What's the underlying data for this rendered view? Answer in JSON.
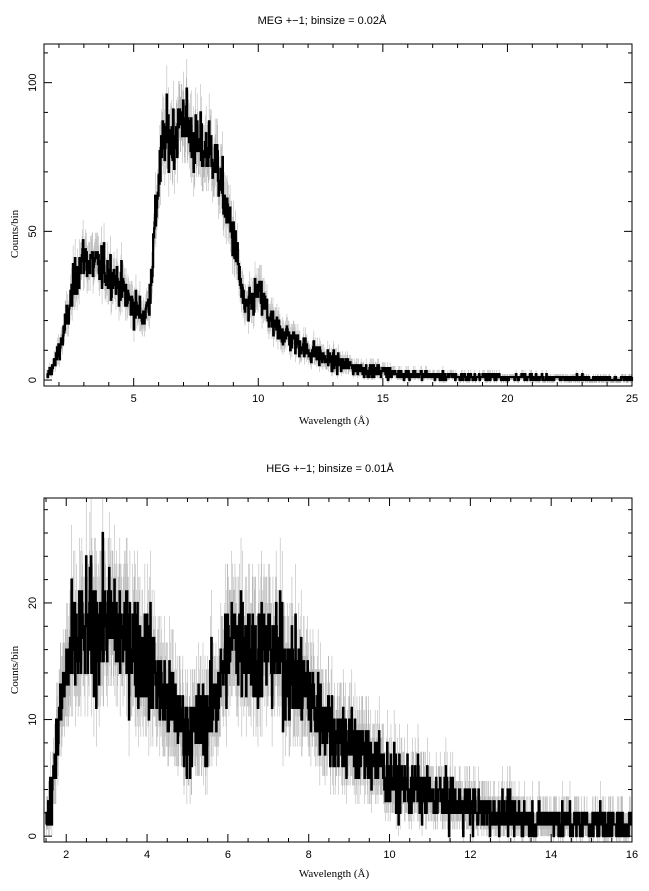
{
  "chart_data": [
    {
      "type": "line",
      "title": "MEG +−1; binsize = 0.02Å",
      "xlabel": "Wavelength (Å)",
      "ylabel": "Counts/bin",
      "xlim": [
        1.4,
        25
      ],
      "ylim": [
        -2,
        113
      ],
      "xticks": [
        5,
        10,
        15,
        20,
        25
      ],
      "yticks": [
        0,
        50,
        100
      ],
      "grid": false,
      "series": [
        {
          "x": [
            1.5,
            1.8,
            2.0,
            2.2,
            2.4,
            2.6,
            2.8,
            3.0,
            3.2,
            3.4,
            3.6,
            3.8,
            4.0,
            4.2,
            4.4,
            4.6,
            4.8,
            5.0,
            5.2,
            5.4,
            5.6,
            5.8,
            6.0,
            6.2,
            6.4,
            6.6,
            6.8,
            7.0,
            7.2,
            7.4,
            7.6,
            7.8,
            8.0,
            8.2,
            8.4,
            8.6,
            8.8,
            9.0,
            9.2,
            9.4,
            9.6,
            9.8,
            10.0,
            10.3,
            10.6,
            11.0,
            11.5,
            12.0,
            12.5,
            13.0,
            13.5,
            14.0,
            14.5,
            15.0,
            15.5,
            16.0,
            17.0,
            18.0,
            19.0,
            20.0,
            21.0,
            22.0,
            23.0,
            24.0,
            25.0
          ],
          "values": [
            1,
            5,
            10,
            16,
            24,
            32,
            38,
            41,
            40,
            39,
            38,
            37,
            36,
            35,
            32,
            30,
            27,
            25,
            23,
            22,
            25,
            45,
            68,
            80,
            82,
            82,
            85,
            90,
            84,
            80,
            78,
            77,
            78,
            76,
            70,
            62,
            55,
            48,
            38,
            26,
            23,
            27,
            30,
            24,
            18,
            16,
            13,
            10,
            8,
            6,
            5,
            4,
            3,
            3,
            2,
            2,
            1.5,
            1,
            1,
            1,
            0.8,
            0.7,
            0.6,
            0.5,
            0.5
          ]
        }
      ]
    },
    {
      "type": "line",
      "title": "HEG +−1; binsize = 0.01Å",
      "xlabel": "Wavelength (Å)",
      "ylabel": "Counts/bin",
      "xlim": [
        1.45,
        16
      ],
      "ylim": [
        -0.5,
        29
      ],
      "xticks": [
        2,
        4,
        6,
        8,
        10,
        12,
        14,
        16
      ],
      "yticks": [
        0,
        10,
        20
      ],
      "grid": false,
      "series": [
        {
          "x": [
            1.5,
            1.6,
            1.7,
            1.8,
            1.9,
            2.0,
            2.2,
            2.4,
            2.6,
            2.8,
            3.0,
            3.2,
            3.4,
            3.6,
            3.8,
            4.0,
            4.2,
            4.4,
            4.6,
            4.8,
            5.0,
            5.2,
            5.4,
            5.6,
            5.8,
            6.0,
            6.2,
            6.4,
            6.6,
            6.8,
            7.0,
            7.2,
            7.4,
            7.6,
            7.8,
            8.0,
            8.2,
            8.4,
            8.6,
            8.8,
            9.0,
            9.2,
            9.4,
            9.6,
            9.8,
            10.0,
            10.3,
            10.6,
            11.0,
            11.5,
            12.0,
            12.5,
            13.0,
            13.5,
            14.0,
            14.5,
            15.0,
            15.5,
            16.0
          ],
          "values": [
            1,
            3,
            6,
            9,
            12,
            14,
            16,
            17,
            18,
            18,
            18.5,
            18,
            17.5,
            17,
            16,
            15,
            14,
            12,
            11,
            10,
            9,
            9,
            10,
            11,
            13,
            16,
            17,
            17,
            16,
            16,
            16,
            16,
            15,
            14,
            13,
            12,
            11,
            10,
            9,
            8.5,
            8,
            7.5,
            7,
            6.5,
            6,
            5,
            4.5,
            4,
            3.5,
            3,
            2.5,
            2,
            1.8,
            1.5,
            1.3,
            1.2,
            1,
            1,
            1
          ]
        }
      ]
    }
  ]
}
